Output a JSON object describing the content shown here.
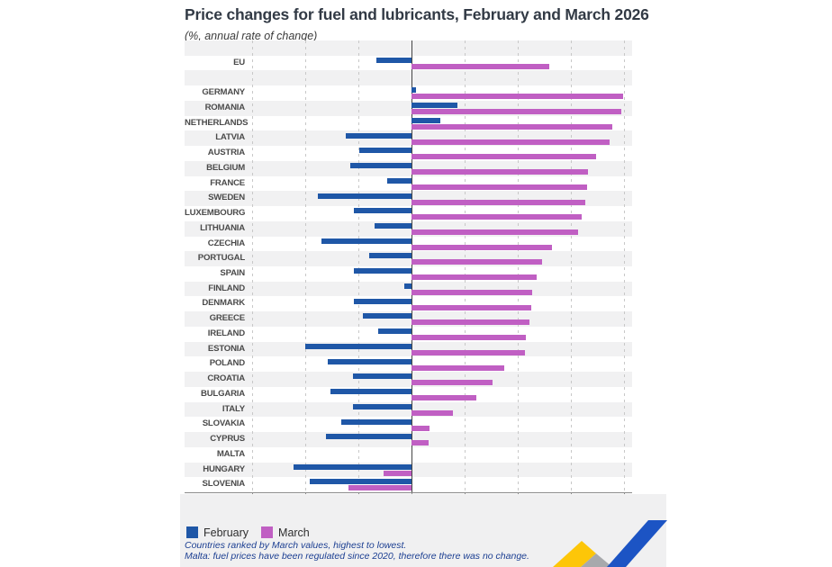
{
  "header": {
    "title": "Price changes for fuel and lubricants, February and March 2026",
    "subtitle": "(%, annual rate of change)"
  },
  "chart_data": {
    "type": "bar",
    "orientation": "horizontal",
    "title": "Price changes for fuel and lubricants, February and March 2026",
    "subtitle": "(%, annual rate of change)",
    "categories": [
      "EU",
      "GERMANY",
      "ROMANIA",
      "NETHERLANDS",
      "LATVIA",
      "AUSTRIA",
      "BELGIUM",
      "FRANCE",
      "SWEDEN",
      "LUXEMBOURG",
      "LITHUANIA",
      "CZECHIA",
      "PORTUGAL",
      "SPAIN",
      "FINLAND",
      "DENMARK",
      "GREECE",
      "IRELAND",
      "ESTONIA",
      "POLAND",
      "CROATIA",
      "BULGARIA",
      "ITALY",
      "SLOVAKIA",
      "CYPRUS",
      "MALTA",
      "HUNGARY",
      "SLOVENIA"
    ],
    "series": [
      {
        "name": "February",
        "color": "#1f57a7",
        "values": [
          -3.3,
          0.4,
          4.3,
          2.7,
          -6.2,
          -4.9,
          -5.8,
          -2.3,
          -8.8,
          -5.4,
          -3.5,
          -8.5,
          -4.0,
          -5.4,
          -0.7,
          -5.4,
          -4.6,
          -3.1,
          -10.0,
          -7.9,
          -5.5,
          -7.6,
          -5.5,
          -6.6,
          -8.1,
          0,
          -11.1,
          -9.6
        ]
      },
      {
        "name": "March",
        "color": "#c05fc3",
        "values": [
          13.0,
          19.9,
          19.8,
          18.9,
          18.7,
          17.4,
          16.6,
          16.5,
          16.4,
          16.0,
          15.7,
          13.2,
          12.3,
          11.8,
          11.4,
          11.3,
          11.1,
          10.8,
          10.7,
          8.7,
          7.6,
          6.1,
          3.9,
          1.7,
          1.6,
          0,
          -2.6,
          -5.9
        ]
      }
    ],
    "xlim": [
      -15,
      20
    ],
    "xticks": [
      -15,
      -10,
      -5,
      0,
      5,
      10,
      15,
      20
    ],
    "grid": "dashed-vertical",
    "legend_position": "bottom-left",
    "gap_after_first_category": true,
    "row_shading": "alternating"
  },
  "legend": {
    "items": [
      {
        "label": "February",
        "color": "#1f57a7"
      },
      {
        "label": "March",
        "color": "#c05fc3"
      }
    ]
  },
  "footnotes": [
    "Countries ranked by March values, highest to lowest.",
    "Malta: fuel prices have been regulated since 2020, therefore there was no change."
  ],
  "colors": {
    "february_bar": "#1f57a7",
    "march_bar": "#c05fc3",
    "band_shade": "#f1f1f2",
    "zero_line": "#454545",
    "gridline": "#c8c8c8",
    "footnote_text": "#1c3f92",
    "logo_yellow": "#fdc608",
    "logo_gray": "#a7a9ac",
    "logo_blue": "#1c54c4"
  }
}
